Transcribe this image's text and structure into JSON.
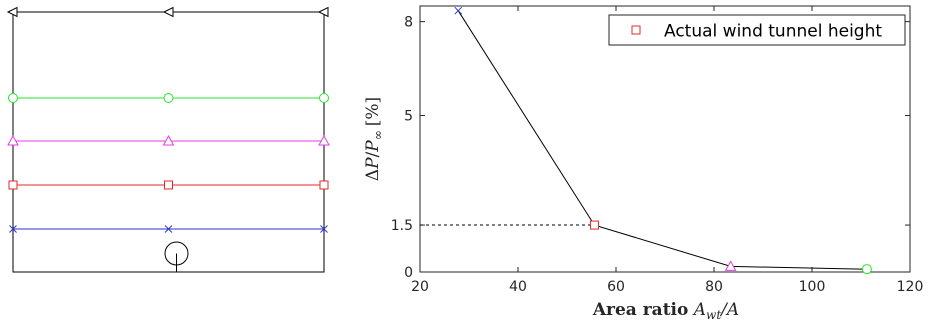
{
  "left_diagram": {
    "markers": [
      "triangle-left",
      "circle",
      "triangle-up",
      "square",
      "x"
    ],
    "colors": {
      "top_line": "#000000",
      "circle_line": "#27e627",
      "triangle_line": "#e43ce4",
      "square_line": "#e32a2a",
      "x_line": "#2a37c9",
      "frame": "#000000"
    },
    "object_icon": "circle-with-stem-icon"
  },
  "chart_data": {
    "type": "line",
    "x": [
      27.8,
      55.6,
      83.4,
      111.2
    ],
    "y": [
      8.35,
      1.5,
      0.18,
      0.09
    ],
    "point_markers": [
      "x",
      "square",
      "triangle",
      "circle"
    ],
    "point_colors": [
      "#2a37c9",
      "#e32a2a",
      "#e43ce4",
      "#27e627"
    ],
    "line_color": "#000000",
    "xlim": [
      20,
      120
    ],
    "ylim": [
      0,
      8.5
    ],
    "xticks": [
      20,
      40,
      60,
      80,
      100,
      120
    ],
    "yticks": [
      0,
      1.5,
      5,
      8
    ],
    "xtick_labels": [
      "20",
      "40",
      "60",
      "80",
      "100",
      "120"
    ],
    "ytick_labels": [
      "0",
      "1.5",
      "5",
      "8"
    ],
    "xlabel_bold": "Area ratio",
    "xlabel_math": "A",
    "xlabel_sub": "wt",
    "xlabel_tail": "/A",
    "ylabel_delta": "Δ",
    "ylabel_P": "P",
    "ylabel_sub": "∞",
    "ylabel_units": "[%]",
    "reference": {
      "x": 55.6,
      "y": 1.5,
      "style": "dashed"
    },
    "legend": {
      "label": "Actual wind tunnel height",
      "marker": "square",
      "color": "#e32a2a",
      "position": "top-right"
    },
    "grid": false
  }
}
